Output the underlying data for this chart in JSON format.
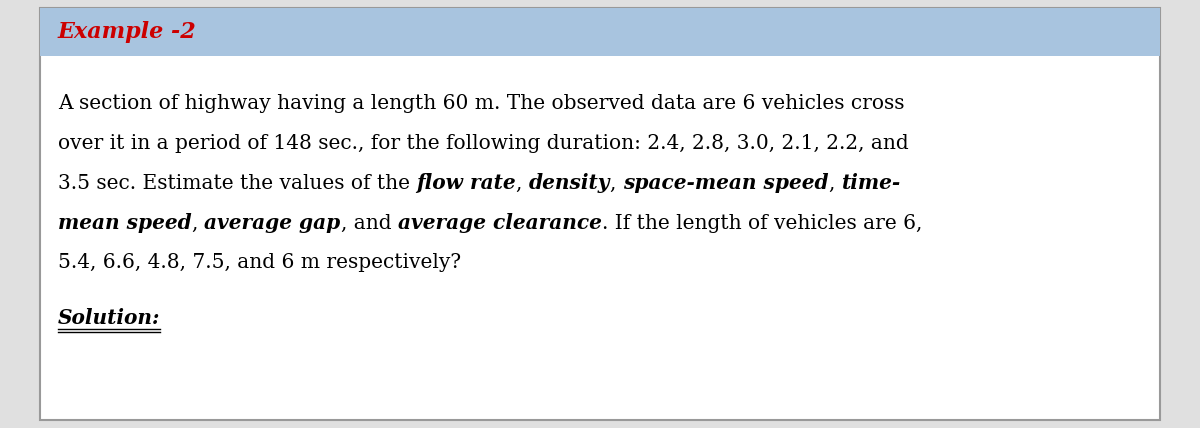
{
  "title": "Example -2",
  "title_color": "#cc0000",
  "title_bg_color": "#a8c4df",
  "title_fontsize": 16,
  "body_fontsize": 14.5,
  "solution_fontsize": 14.5,
  "bg_color": "#ffffff",
  "border_color": "#999999",
  "line1": "A section of highway having a length 60 m. The observed data are 6 vehicles cross",
  "line2": "over it in a period of 148 sec., for the following duration: 2.4, 2.8, 3.0, 2.1, 2.2, and",
  "line3_parts": [
    {
      "text": "3.5 sec. Estimate the values of the ",
      "bold": false,
      "italic": false
    },
    {
      "text": "flow rate",
      "bold": true,
      "italic": true
    },
    {
      "text": ", ",
      "bold": false,
      "italic": false
    },
    {
      "text": "density",
      "bold": true,
      "italic": true
    },
    {
      "text": ", ",
      "bold": false,
      "italic": false
    },
    {
      "text": "space-mean speed",
      "bold": true,
      "italic": true
    },
    {
      "text": ", ",
      "bold": false,
      "italic": false
    },
    {
      "text": "time-",
      "bold": true,
      "italic": true
    }
  ],
  "line4_parts": [
    {
      "text": "mean speed",
      "bold": true,
      "italic": true
    },
    {
      "text": ", ",
      "bold": false,
      "italic": false
    },
    {
      "text": "average gap",
      "bold": true,
      "italic": true
    },
    {
      "text": ", and ",
      "bold": false,
      "italic": false
    },
    {
      "text": "average clearance",
      "bold": true,
      "italic": true
    },
    {
      "text": ". If the length of vehicles are 6,",
      "bold": false,
      "italic": false
    }
  ],
  "line5": "5.4, 6.6, 4.8, 7.5, and 6 m respectively?",
  "solution_text": "Solution:",
  "outer_bg": "#e0e0e0"
}
